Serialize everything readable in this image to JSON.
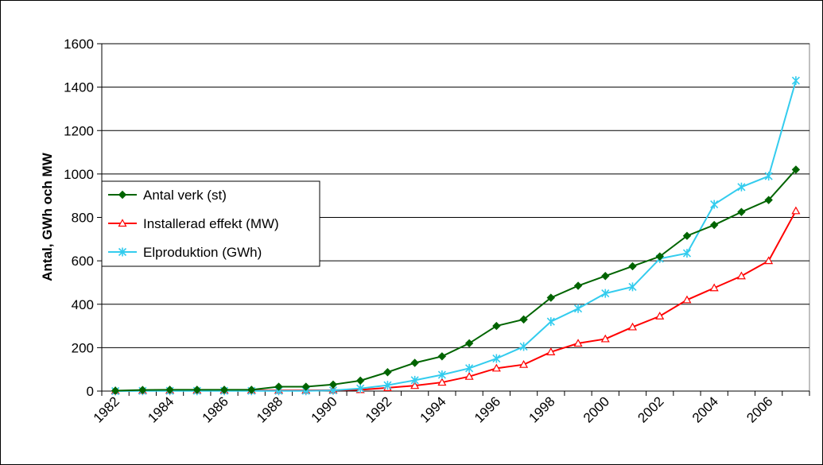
{
  "chart_data": {
    "type": "line",
    "title": "",
    "xlabel": "",
    "ylabel": "Antal, GWh och MW",
    "ylim": [
      0,
      1600
    ],
    "yticks": [
      0,
      200,
      400,
      600,
      800,
      1000,
      1200,
      1400,
      1600
    ],
    "x": [
      1982,
      1983,
      1984,
      1985,
      1986,
      1987,
      1988,
      1989,
      1990,
      1991,
      1992,
      1993,
      1994,
      1995,
      1996,
      1997,
      1998,
      1999,
      2000,
      2001,
      2002,
      2003,
      2004,
      2005,
      2006,
      2007
    ],
    "xtick_labels": [
      "1982",
      "1984",
      "1986",
      "1988",
      "1990",
      "1992",
      "1994",
      "1996",
      "1998",
      "2000",
      "2002",
      "2004",
      "2006"
    ],
    "grid": "horizontal",
    "legend_position": "left",
    "series": [
      {
        "name": "Antal verk (st)",
        "color": "#006400",
        "marker": "diamond",
        "values": [
          2,
          5,
          6,
          6,
          6,
          6,
          20,
          20,
          30,
          48,
          87,
          130,
          160,
          220,
          300,
          330,
          430,
          485,
          530,
          575,
          620,
          715,
          765,
          825,
          880,
          1020
        ]
      },
      {
        "name": "Installerad effekt (MW)",
        "color": "#ff0000",
        "marker": "triangle",
        "values": [
          1,
          2,
          3,
          3,
          3,
          3,
          3,
          3,
          4,
          6,
          15,
          25,
          40,
          67,
          105,
          122,
          180,
          220,
          240,
          295,
          345,
          420,
          475,
          530,
          600,
          830
        ]
      },
      {
        "name": "Elproduktion (GWh)",
        "color": "#33ccee",
        "marker": "star",
        "values": [
          0,
          1,
          1,
          1,
          1,
          1,
          1,
          1,
          3,
          12,
          27,
          50,
          75,
          105,
          150,
          205,
          320,
          380,
          450,
          480,
          610,
          635,
          860,
          940,
          990,
          1430
        ]
      }
    ]
  }
}
